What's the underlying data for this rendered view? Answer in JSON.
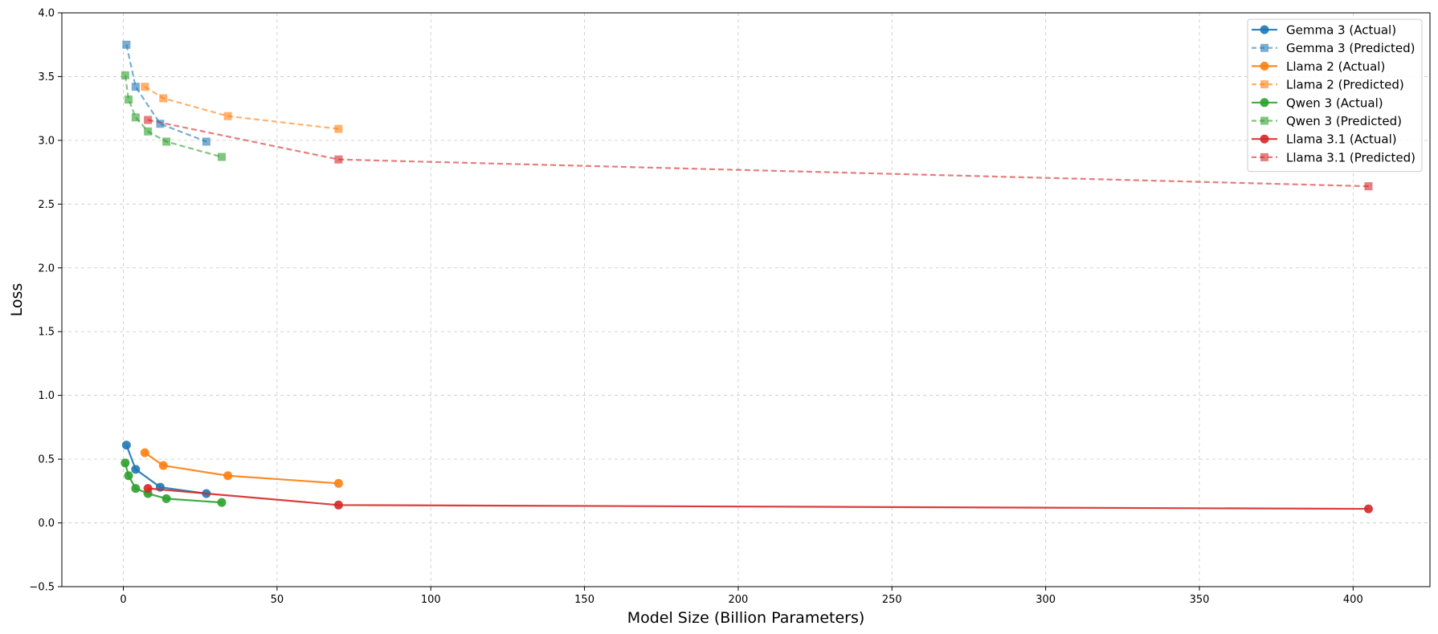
{
  "chart_data": {
    "type": "line",
    "title": "",
    "xlabel": "Model Size (Billion Parameters)",
    "ylabel": "Loss",
    "xlim": [
      -20,
      425
    ],
    "ylim": [
      -0.5,
      4.0
    ],
    "xticks": [
      0,
      50,
      100,
      150,
      200,
      250,
      300,
      350,
      400
    ],
    "yticks": [
      -0.5,
      0.0,
      0.5,
      1.0,
      1.5,
      2.0,
      2.5,
      3.0,
      3.5,
      4.0
    ],
    "xtick_labels": [
      "0",
      "50",
      "100",
      "150",
      "200",
      "250",
      "300",
      "350",
      "400"
    ],
    "ytick_labels": [
      "−0.5",
      "0.0",
      "0.5",
      "1.0",
      "1.5",
      "2.0",
      "2.5",
      "3.0",
      "3.5",
      "4.0"
    ],
    "grid": true,
    "legend_position": "top-right",
    "series": [
      {
        "name": "Gemma 3 (Actual)",
        "color": "#1f77b4",
        "style": "solid",
        "marker": "circle",
        "x": [
          1,
          4,
          12,
          27
        ],
        "y": [
          0.61,
          0.42,
          0.28,
          0.23
        ]
      },
      {
        "name": "Gemma 3 (Predicted)",
        "color": "#1f77b4",
        "style": "dashed",
        "marker": "square",
        "x": [
          1,
          4,
          12,
          27
        ],
        "y": [
          3.75,
          3.42,
          3.13,
          2.99
        ]
      },
      {
        "name": "Llama 2 (Actual)",
        "color": "#ff7f0e",
        "style": "solid",
        "marker": "circle",
        "x": [
          7,
          13,
          34,
          70
        ],
        "y": [
          0.55,
          0.45,
          0.37,
          0.31
        ]
      },
      {
        "name": "Llama 2 (Predicted)",
        "color": "#ff7f0e",
        "style": "dashed",
        "marker": "square",
        "x": [
          7,
          13,
          34,
          70
        ],
        "y": [
          3.42,
          3.33,
          3.19,
          3.09
        ]
      },
      {
        "name": "Qwen 3 (Actual)",
        "color": "#2ca02c",
        "style": "solid",
        "marker": "circle",
        "x": [
          0.6,
          1.7,
          4,
          8,
          14,
          32
        ],
        "y": [
          0.47,
          0.37,
          0.27,
          0.23,
          0.19,
          0.16
        ]
      },
      {
        "name": "Qwen 3 (Predicted)",
        "color": "#2ca02c",
        "style": "dashed",
        "marker": "square",
        "x": [
          0.6,
          1.7,
          4,
          8,
          14,
          32
        ],
        "y": [
          3.51,
          3.32,
          3.18,
          3.07,
          2.99,
          2.87
        ]
      },
      {
        "name": "Llama 3.1 (Actual)",
        "color": "#d62728",
        "style": "solid",
        "marker": "circle",
        "x": [
          8,
          70,
          405
        ],
        "y": [
          0.27,
          0.14,
          0.11
        ]
      },
      {
        "name": "Llama 3.1 (Predicted)",
        "color": "#d62728",
        "style": "dashed",
        "marker": "square",
        "x": [
          8,
          70,
          405
        ],
        "y": [
          3.16,
          2.85,
          2.64
        ]
      }
    ]
  }
}
